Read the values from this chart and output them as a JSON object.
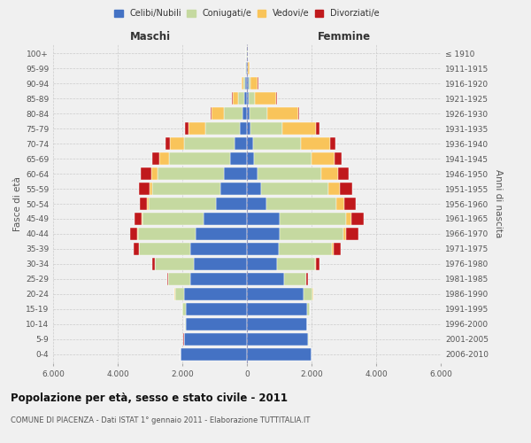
{
  "age_groups": [
    "0-4",
    "5-9",
    "10-14",
    "15-19",
    "20-24",
    "25-29",
    "30-34",
    "35-39",
    "40-44",
    "45-49",
    "50-54",
    "55-59",
    "60-64",
    "65-69",
    "70-74",
    "75-79",
    "80-84",
    "85-89",
    "90-94",
    "95-99",
    "100+"
  ],
  "birth_years": [
    "2006-2010",
    "2001-2005",
    "1996-2000",
    "1991-1995",
    "1986-1990",
    "1981-1985",
    "1976-1980",
    "1971-1975",
    "1966-1970",
    "1961-1965",
    "1956-1960",
    "1951-1955",
    "1946-1950",
    "1941-1945",
    "1936-1940",
    "1931-1935",
    "1926-1930",
    "1921-1925",
    "1916-1920",
    "1911-1915",
    "≤ 1910"
  ],
  "colors": {
    "celibi": "#4472C4",
    "coniugati": "#c5d9a0",
    "vedovi": "#f9c45a",
    "divorziati": "#c0191c"
  },
  "males": {
    "celibi": [
      2050,
      1950,
      1900,
      1900,
      1950,
      1750,
      1650,
      1750,
      1600,
      1350,
      950,
      820,
      720,
      520,
      370,
      220,
      130,
      85,
      55,
      25,
      12
    ],
    "coniugati": [
      5,
      5,
      10,
      90,
      280,
      680,
      1200,
      1580,
      1780,
      1880,
      2080,
      2100,
      2050,
      1880,
      1580,
      1080,
      590,
      200,
      65,
      22,
      5
    ],
    "vedovi": [
      2,
      2,
      2,
      2,
      4,
      4,
      8,
      12,
      20,
      32,
      62,
      100,
      200,
      310,
      420,
      520,
      370,
      165,
      45,
      12,
      2
    ],
    "divorziati": [
      2,
      2,
      2,
      5,
      10,
      30,
      80,
      160,
      210,
      220,
      210,
      310,
      310,
      210,
      160,
      90,
      25,
      15,
      10,
      5,
      1
    ]
  },
  "females": {
    "celibi": [
      2000,
      1900,
      1850,
      1850,
      1750,
      1150,
      930,
      980,
      1000,
      1000,
      600,
      450,
      330,
      220,
      180,
      120,
      80,
      65,
      45,
      22,
      12
    ],
    "coniugati": [
      5,
      5,
      10,
      95,
      290,
      680,
      1180,
      1650,
      1980,
      2080,
      2180,
      2080,
      1980,
      1780,
      1480,
      980,
      560,
      195,
      60,
      12,
      4
    ],
    "vedovi": [
      2,
      2,
      2,
      2,
      8,
      12,
      28,
      60,
      100,
      160,
      220,
      360,
      520,
      720,
      920,
      1050,
      950,
      650,
      230,
      48,
      8
    ],
    "divorziati": [
      2,
      2,
      2,
      5,
      18,
      52,
      100,
      210,
      370,
      390,
      380,
      370,
      310,
      210,
      160,
      90,
      32,
      20,
      10,
      5,
      1
    ]
  },
  "title": "Popolazione per età, sesso e stato civile - 2011",
  "subtitle": "COMUNE DI PIACENZA - Dati ISTAT 1° gennaio 2011 - Elaborazione TUTTITALIA.IT",
  "xlabel_left": "Maschi",
  "xlabel_right": "Femmine",
  "ylabel_left": "Fasce di età",
  "ylabel_right": "Anni di nascita",
  "xlim": 6000,
  "xticklabels": [
    "6.000",
    "4.000",
    "2.000",
    "0",
    "2.000",
    "4.000",
    "6.000"
  ],
  "bg_color": "#f0f0f0",
  "grid_color": "#cccccc"
}
